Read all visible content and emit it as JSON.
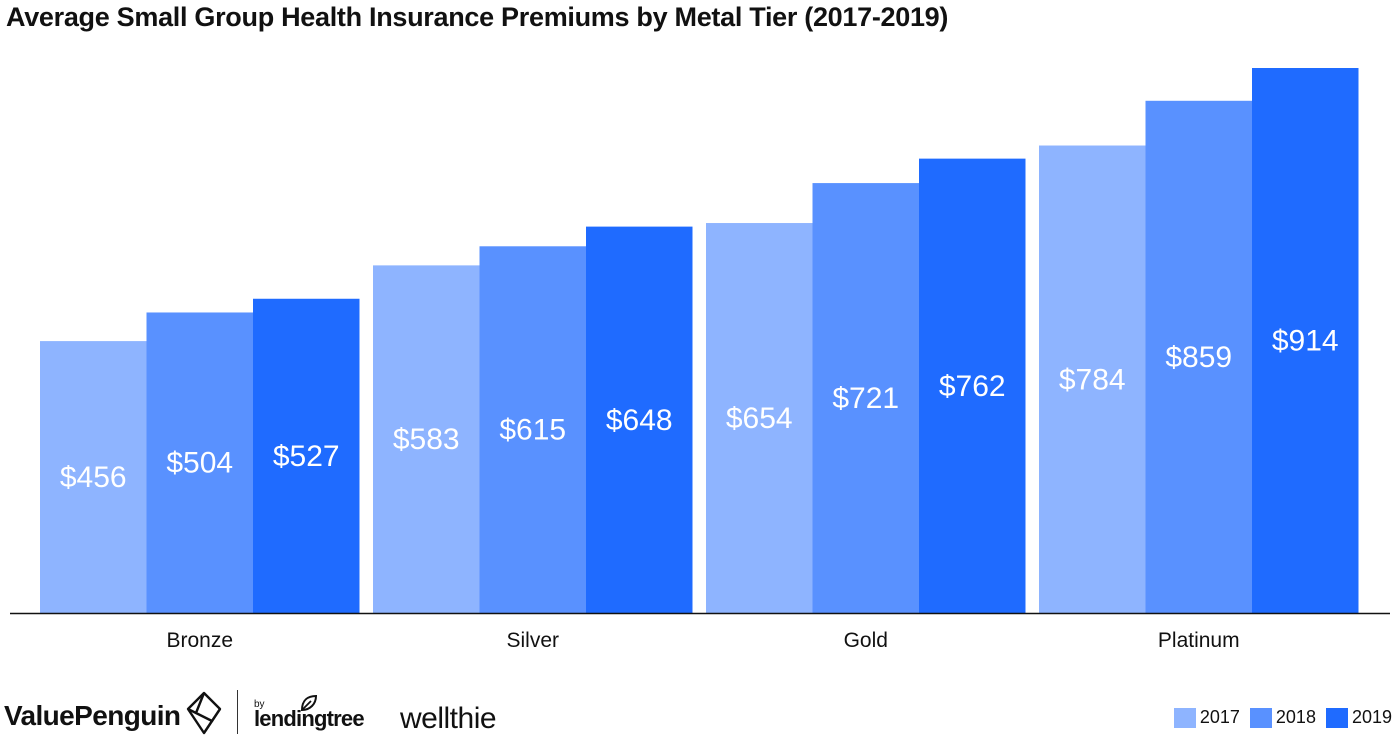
{
  "chart_data": {
    "type": "bar",
    "title": "Average Small Group Health Insurance Premiums by Metal Tier (2017-2019)",
    "categories": [
      "Bronze",
      "Silver",
      "Gold",
      "Platinum"
    ],
    "series": [
      {
        "name": "2017",
        "values": [
          456,
          583,
          654,
          784
        ],
        "labels": [
          "$456",
          "$583",
          "$654",
          "$784"
        ],
        "color": "#8eb4ff"
      },
      {
        "name": "2018",
        "values": [
          504,
          615,
          721,
          859
        ],
        "labels": [
          "$504",
          "$615",
          "$721",
          "$859"
        ],
        "color": "#5991ff"
      },
      {
        "name": "2019",
        "values": [
          527,
          648,
          762,
          914
        ],
        "labels": [
          "$527",
          "$648",
          "$762",
          "$914"
        ],
        "color": "#1f6bff"
      }
    ],
    "ylim": [
      0,
      960
    ],
    "grid": false,
    "legend_position": "bottom-right",
    "xlabel": "",
    "ylabel": ""
  },
  "footer": {
    "brand_valuepenguin": "ValuePenguin",
    "brand_by": "by",
    "brand_lendingtree": "lendingtree",
    "brand_wellthie": "wellthie",
    "icons": [
      "valuepenguin-logo-icon",
      "lendingtree-leaf-icon"
    ]
  }
}
